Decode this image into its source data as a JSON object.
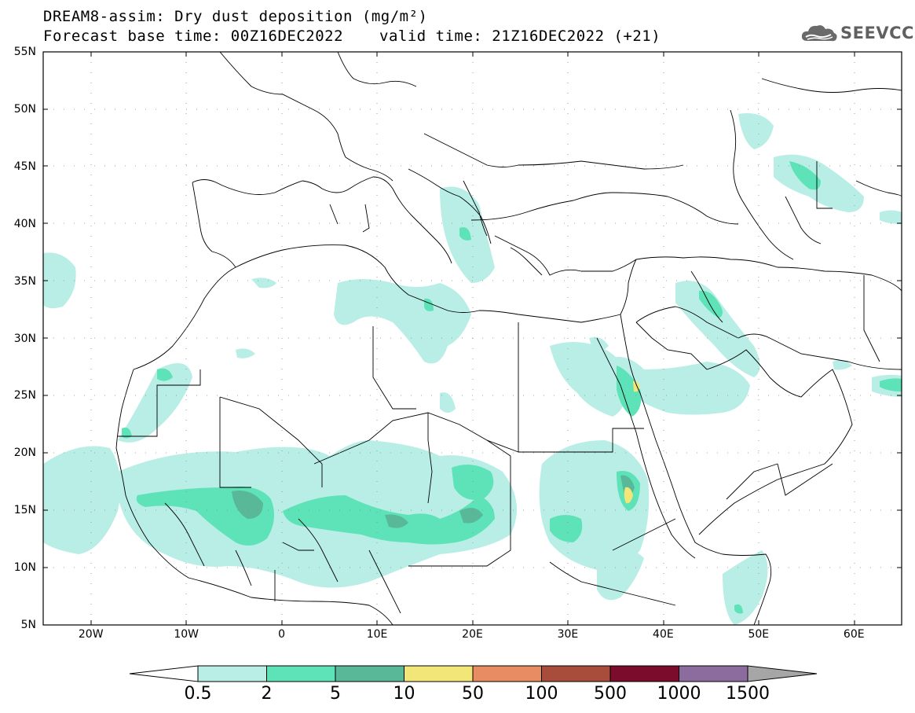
{
  "header": {
    "title": "DREAM8-assim: Dry dust deposition (mg/m²)",
    "base_time": "Forecast base time: 00Z16DEC2022",
    "valid_time": "valid time: 21Z16DEC2022 (+21)"
  },
  "logo": {
    "text": "SEEVCCC",
    "icon": "cloud-icon"
  },
  "map": {
    "projection": "lat-lon",
    "lon_range": [
      -25,
      65
    ],
    "lat_range": [
      5,
      55
    ],
    "lat_ticks": [
      {
        "value": 55,
        "label": "55N"
      },
      {
        "value": 50,
        "label": "50N"
      },
      {
        "value": 45,
        "label": "45N"
      },
      {
        "value": 40,
        "label": "40N"
      },
      {
        "value": 35,
        "label": "35N"
      },
      {
        "value": 30,
        "label": "30N"
      },
      {
        "value": 25,
        "label": "25N"
      },
      {
        "value": 20,
        "label": "20N"
      },
      {
        "value": 15,
        "label": "15N"
      },
      {
        "value": 10,
        "label": "10N"
      },
      {
        "value": 5,
        "label": "5N"
      }
    ],
    "lon_ticks": [
      {
        "value": -20,
        "label": "20W"
      },
      {
        "value": -10,
        "label": "10W"
      },
      {
        "value": 0,
        "label": "0"
      },
      {
        "value": 10,
        "label": "10E"
      },
      {
        "value": 20,
        "label": "20E"
      },
      {
        "value": 30,
        "label": "30E"
      },
      {
        "value": 40,
        "label": "40E"
      },
      {
        "value": 50,
        "label": "50E"
      },
      {
        "value": 60,
        "label": "60E"
      }
    ],
    "grid": "dotted",
    "boundary_color": "#000000"
  },
  "colorbar": {
    "labels": [
      "0.5",
      "2",
      "5",
      "10",
      "50",
      "100",
      "500",
      "1000",
      "1500"
    ],
    "colors": [
      "#b8eee6",
      "#5ee2b7",
      "#58b898",
      "#f2e679",
      "#e88c64",
      "#a84c3c",
      "#7c0c2c",
      "#8c6b9e"
    ],
    "under_color": "#ffffff",
    "over_color": "#a6a6a6"
  },
  "dust_palette": {
    "level_05": "#b8eee6",
    "level_2": "#5ee2b7",
    "level_5": "#58b898",
    "level_10": "#f2e679"
  }
}
